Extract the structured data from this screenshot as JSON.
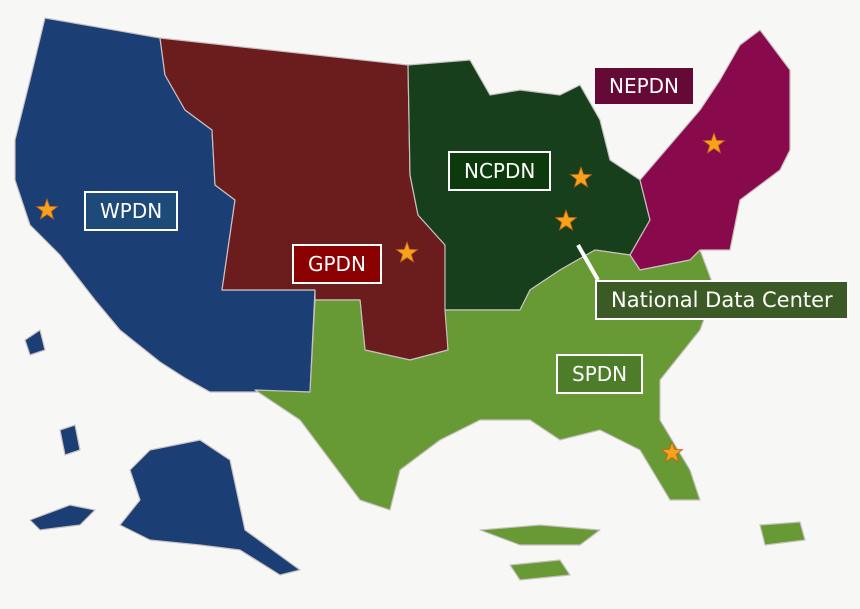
{
  "regions": [
    {
      "id": "wpdn",
      "label": "WPDN",
      "color": "#1b3f75"
    },
    {
      "id": "gpdn",
      "label": "GPDN",
      "color": "#6b1d1e"
    },
    {
      "id": "ncpdn",
      "label": "NCPDN",
      "color": "#173f1c"
    },
    {
      "id": "nepdn",
      "label": "NEPDN",
      "color": "#880a4c"
    },
    {
      "id": "spdn",
      "label": "SPDN",
      "color": "#679a34"
    }
  ],
  "callout": {
    "label": "National Data Center",
    "color": "#3b5a25"
  },
  "label_colors": {
    "wpdn": "#1e4a7a",
    "gpdn": "#8b0000",
    "ncpdn": "#0d3a0d",
    "nepdn": "#650a36",
    "spdn": "#4e7d2a"
  },
  "star_icon": "star-icon",
  "star_color": "#f7a21b"
}
